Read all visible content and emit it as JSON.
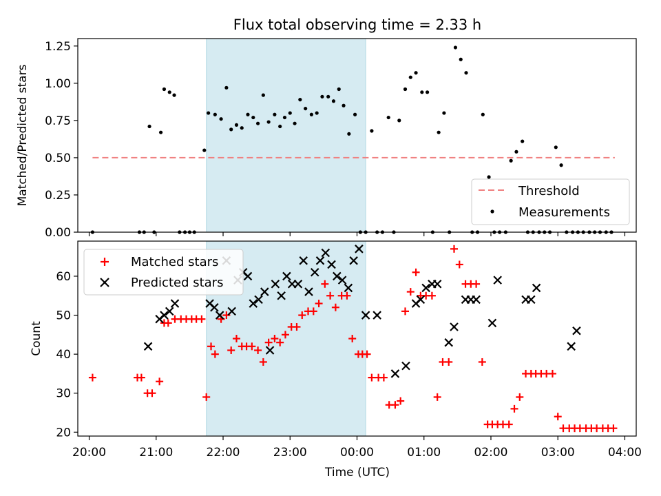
{
  "chart_data": [
    {
      "type": "scatter",
      "title": "Flux total observing time = 2.33 h",
      "xlabel": "",
      "ylabel": "Matched/Predicted stars",
      "xlim": [
        19.83,
        28.17
      ],
      "ylim": [
        0.0,
        1.3
      ],
      "yticks": [
        0.0,
        0.25,
        0.5,
        0.75,
        1.0,
        1.25
      ],
      "ytick_labels": [
        "0.00",
        "0.25",
        "0.50",
        "0.75",
        "1.00",
        "1.25"
      ],
      "shaded_interval": [
        21.75,
        24.13
      ],
      "threshold": {
        "label": "Threshold",
        "value": 0.5,
        "x_range": [
          20.05,
          27.85
        ],
        "color": "#f08080"
      },
      "legend": {
        "position": "lower right",
        "entries": [
          "Threshold",
          "Measurements"
        ]
      },
      "series": [
        {
          "name": "Measurements",
          "color": "#000000",
          "x": [
            20.05,
            20.75,
            20.82,
            20.9,
            20.97,
            21.07,
            21.12,
            21.2,
            21.27,
            21.35,
            21.43,
            21.5,
            21.57,
            21.72,
            21.78,
            21.88,
            21.97,
            22.05,
            22.12,
            22.2,
            22.28,
            22.37,
            22.45,
            22.52,
            22.6,
            22.68,
            22.77,
            22.85,
            22.92,
            23.0,
            23.07,
            23.15,
            23.23,
            23.32,
            23.4,
            23.48,
            23.57,
            23.65,
            23.73,
            23.8,
            23.88,
            23.97,
            24.05,
            24.13,
            24.22,
            24.3,
            24.38,
            24.47,
            24.55,
            24.63,
            24.72,
            24.8,
            24.88,
            24.97,
            25.05,
            25.13,
            25.22,
            25.3,
            25.38,
            25.47,
            25.55,
            25.63,
            25.72,
            25.8,
            25.88,
            25.97,
            26.05,
            26.13,
            26.22,
            26.3,
            26.38,
            26.47,
            26.55,
            26.63,
            26.72,
            26.8,
            26.88,
            26.97,
            27.05,
            27.13,
            27.22,
            27.3,
            27.38,
            27.47,
            27.55,
            27.63,
            27.72,
            27.8
          ],
          "y": [
            0.0,
            0.0,
            0.0,
            0.71,
            0.0,
            0.67,
            0.96,
            0.94,
            0.92,
            0.0,
            0.0,
            0.0,
            0.0,
            0.55,
            0.8,
            0.79,
            0.76,
            0.97,
            0.69,
            0.72,
            0.7,
            0.79,
            0.77,
            0.73,
            0.92,
            0.74,
            0.79,
            0.71,
            0.77,
            0.8,
            0.73,
            0.89,
            0.83,
            0.79,
            0.8,
            0.91,
            0.91,
            0.88,
            0.96,
            0.85,
            0.66,
            0.79,
            0.0,
            0.0,
            0.68,
            0.0,
            0.0,
            0.77,
            0.0,
            0.75,
            0.96,
            1.04,
            1.07,
            0.94,
            0.94,
            0.0,
            0.67,
            0.8,
            0.0,
            1.24,
            1.16,
            1.07,
            0.0,
            0.0,
            0.79,
            0.37,
            0.0,
            0.0,
            0.0,
            0.48,
            0.54,
            0.61,
            0.0,
            0.0,
            0.0,
            0.0,
            0.0,
            0.57,
            0.45,
            0.0,
            0.0,
            0.0,
            0.0,
            0.0,
            0.0,
            0.0,
            0.0,
            0.0
          ]
        }
      ]
    },
    {
      "type": "scatter",
      "title": "",
      "xlabel": "Time (UTC)",
      "ylabel": "Count",
      "xlim": [
        19.83,
        28.17
      ],
      "ylim": [
        19,
        69
      ],
      "yticks": [
        20,
        30,
        40,
        50,
        60
      ],
      "ytick_labels": [
        "20",
        "30",
        "40",
        "50",
        "60"
      ],
      "xticks": [
        20,
        21,
        22,
        23,
        24,
        25,
        26,
        27,
        28
      ],
      "xtick_labels": [
        "20:00",
        "21:00",
        "22:00",
        "23:00",
        "00:00",
        "01:00",
        "02:00",
        "03:00",
        "04:00"
      ],
      "shaded_interval": [
        21.75,
        24.13
      ],
      "legend": {
        "position": "upper left",
        "entries": [
          "Matched stars",
          "Predicted stars"
        ]
      },
      "series": [
        {
          "name": "Matched stars",
          "marker": "+",
          "color": "#ff0000",
          "x": [
            20.05,
            20.72,
            20.78,
            20.87,
            20.94,
            21.05,
            21.12,
            21.18,
            21.28,
            21.37,
            21.45,
            21.53,
            21.6,
            21.68,
            21.75,
            21.82,
            21.88,
            21.97,
            22.05,
            22.12,
            22.2,
            22.28,
            22.35,
            22.43,
            22.52,
            22.6,
            22.68,
            22.77,
            22.85,
            22.93,
            23.02,
            23.1,
            23.18,
            23.27,
            23.35,
            23.43,
            23.52,
            23.6,
            23.68,
            23.77,
            23.85,
            23.93,
            24.02,
            24.08,
            24.15,
            24.22,
            24.32,
            24.4,
            24.48,
            24.57,
            24.65,
            24.72,
            24.8,
            24.88,
            24.95,
            25.03,
            25.12,
            25.2,
            25.28,
            25.37,
            25.45,
            25.53,
            25.62,
            25.7,
            25.78,
            25.87,
            25.95,
            26.02,
            26.1,
            26.18,
            26.27,
            26.35,
            26.43,
            26.52,
            26.6,
            26.67,
            26.75,
            26.83,
            26.92,
            27.0,
            27.08,
            27.17,
            27.25,
            27.33,
            27.42,
            27.5,
            27.58,
            27.67,
            27.75,
            27.83
          ],
          "y": [
            34,
            34,
            34,
            30,
            30,
            33,
            48,
            48,
            49,
            49,
            49,
            49,
            49,
            49,
            29,
            42,
            40,
            49,
            50,
            41,
            44,
            42,
            42,
            42,
            41,
            38,
            43,
            44,
            43,
            45,
            47,
            47,
            50,
            51,
            51,
            53,
            58,
            55,
            52,
            55,
            55,
            44,
            40,
            40,
            40,
            34,
            34,
            34,
            27,
            27,
            28,
            51,
            56,
            61,
            55,
            55,
            55,
            29,
            38,
            38,
            67,
            63,
            58,
            58,
            58,
            38,
            22,
            22,
            22,
            22,
            22,
            26,
            29,
            35,
            35,
            35,
            35,
            35,
            35,
            24,
            21,
            21,
            21,
            21,
            21,
            21,
            21,
            21,
            21,
            21
          ]
        },
        {
          "name": "Predicted stars",
          "marker": "x",
          "color": "#000000",
          "x": [
            20.88,
            21.05,
            21.12,
            21.2,
            21.28,
            21.8,
            21.87,
            21.95,
            22.05,
            22.13,
            22.22,
            22.3,
            22.37,
            22.45,
            22.53,
            22.62,
            22.7,
            22.78,
            22.87,
            22.95,
            23.03,
            23.12,
            23.2,
            23.28,
            23.37,
            23.45,
            23.53,
            23.62,
            23.7,
            23.78,
            23.87,
            23.95,
            24.03,
            24.13,
            24.3,
            24.57,
            24.73,
            24.88,
            24.95,
            25.03,
            25.12,
            25.2,
            25.37,
            25.45,
            25.62,
            25.7,
            25.78,
            26.02,
            26.1,
            26.52,
            26.6,
            26.68,
            27.2,
            27.28
          ],
          "y": [
            42,
            49,
            50,
            51,
            53,
            53,
            52,
            50,
            64,
            51,
            59,
            61,
            60,
            53,
            54,
            56,
            41,
            58,
            55,
            60,
            58,
            58,
            64,
            56,
            61,
            64,
            66,
            63,
            60,
            59,
            57,
            64,
            67,
            50,
            50,
            35,
            37,
            53,
            54,
            57,
            58,
            58,
            43,
            47,
            54,
            54,
            54,
            48,
            59,
            54,
            54,
            57,
            42,
            46
          ]
        }
      ]
    }
  ]
}
